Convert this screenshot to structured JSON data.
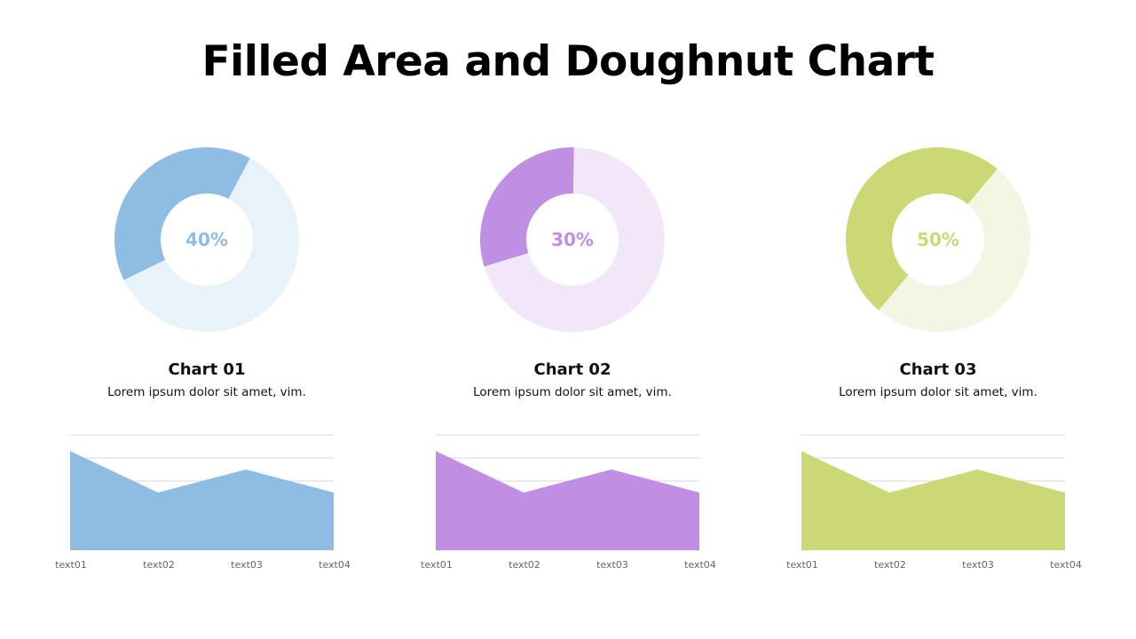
{
  "page": {
    "title": "Filled Area and Doughnut Chart"
  },
  "panels": [
    {
      "title": "Chart 01",
      "desc": "Lorem ipsum dolor sit amet, vim.",
      "percent_label": "40%",
      "color": "#8fbce3",
      "light": "#e8f2f9"
    },
    {
      "title": "Chart 02",
      "desc": "Lorem ipsum dolor sit amet, vim.",
      "percent_label": "30%",
      "color": "#c08ee2",
      "light": "#f1e7f9"
    },
    {
      "title": "Chart 03",
      "desc": "Lorem ipsum dolor sit amet, vim.",
      "percent_label": "50%",
      "color": "#ccd776",
      "light": "#f3f6e3"
    }
  ],
  "chart_data": [
    {
      "type": "pie",
      "variant": "doughnut",
      "values": [
        40,
        60
      ]
    },
    {
      "type": "pie",
      "variant": "doughnut",
      "values": [
        30,
        70
      ]
    },
    {
      "type": "pie",
      "variant": "doughnut",
      "values": [
        50,
        50
      ]
    },
    {
      "type": "area",
      "categories": [
        "text01",
        "text02",
        "text03",
        "text04"
      ],
      "values": [
        4.3,
        2.5,
        3.5,
        2.5
      ],
      "ylim": [
        0,
        5
      ],
      "grid": true
    },
    {
      "type": "area",
      "categories": [
        "text01",
        "text02",
        "text03",
        "text04"
      ],
      "values": [
        4.3,
        2.5,
        3.5,
        2.5
      ],
      "ylim": [
        0,
        5
      ],
      "grid": true
    },
    {
      "type": "area",
      "categories": [
        "text01",
        "text02",
        "text03",
        "text04"
      ],
      "values": [
        4.3,
        2.5,
        3.5,
        2.5
      ],
      "ylim": [
        0,
        5
      ],
      "grid": true
    }
  ]
}
